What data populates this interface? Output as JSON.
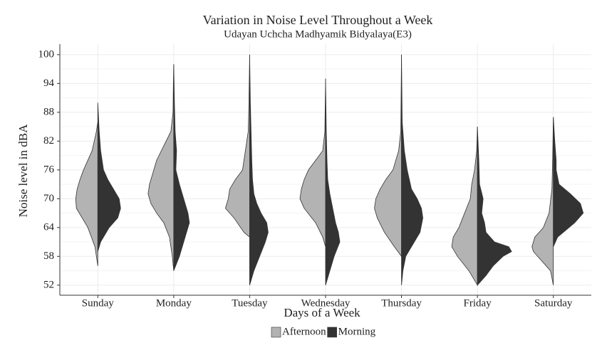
{
  "chart_data": {
    "type": "violin",
    "title": "Variation in Noise Level Throughout a Week",
    "subtitle": "Udayan Uchcha Madhyamik Bidyalaya(E3)",
    "x_label": "Days of a Week",
    "y_label": "Noise level in dBA",
    "categories": [
      "Sunday",
      "Monday",
      "Tuesday",
      "Wednesday",
      "Thursday",
      "Friday",
      "Saturday"
    ],
    "ylim": [
      49.9,
      102.2
    ],
    "yticks": [
      52,
      58,
      64,
      70,
      76,
      82,
      88,
      94,
      100
    ],
    "grid": true,
    "legend": "bottom",
    "series": [
      {
        "name": "Afternoon",
        "color": "#b3b3b3",
        "side": "left",
        "violins": [
          {
            "y": [
              56,
              60,
              64,
              66,
              68,
              70,
              72,
              74,
              76,
              78,
              80,
              84,
              86
            ],
            "width": [
              0,
              4,
              14,
              22,
              30,
              31,
              29,
              25,
              20,
              14,
              8,
              2,
              0
            ]
          },
          {
            "y": [
              55,
              58,
              62,
              65,
              67,
              69,
              71,
              73,
              75,
              78,
              81,
              84,
              88,
              94,
              98
            ],
            "width": [
              0,
              2,
              6,
              14,
              24,
              32,
              36,
              34,
              30,
              24,
              14,
              4,
              1,
              0.5,
              0
            ]
          },
          {
            "y": [
              62,
              63,
              66,
              68,
              70,
              72,
              74,
              76,
              78,
              80,
              84,
              90,
              100
            ],
            "width": [
              0,
              8,
              22,
              34,
              30,
              28,
              20,
              10,
              8,
              6,
              2,
              1,
              0
            ]
          },
          {
            "y": [
              60,
              62,
              65,
              68,
              70,
              72,
              74,
              76,
              78,
              80,
              84,
              95
            ],
            "width": [
              0,
              4,
              14,
              30,
              36,
              34,
              30,
              24,
              14,
              4,
              1,
              0
            ]
          },
          {
            "y": [
              58,
              60,
              63,
              66,
              68,
              70,
              72,
              74,
              76,
              80,
              84,
              100
            ],
            "width": [
              0,
              10,
              24,
              34,
              38,
              36,
              30,
              22,
              12,
              4,
              1,
              0
            ]
          },
          {
            "y": [
              52,
              55,
              58,
              60,
              62,
              64,
              67,
              70,
              73,
              76,
              80,
              85
            ],
            "width": [
              0,
              12,
              28,
              36,
              34,
              26,
              18,
              10,
              8,
              4,
              1,
              0
            ]
          },
          {
            "y": [
              52,
              55,
              57,
              59,
              60,
              62,
              64,
              67,
              72,
              78,
              87
            ],
            "width": [
              0,
              4,
              16,
              28,
              30,
              26,
              14,
              6,
              2,
              1,
              0
            ]
          }
        ]
      },
      {
        "name": "Morning",
        "color": "#333333",
        "side": "right",
        "violins": [
          {
            "y": [
              59,
              61,
              64,
              66,
              68,
              70,
              72,
              74,
              76,
              80,
              84,
              90
            ],
            "width": [
              0,
              4,
              16,
              28,
              32,
              30,
              22,
              14,
              8,
              4,
              2,
              0
            ]
          },
          {
            "y": [
              55,
              58,
              62,
              65,
              67,
              69,
              71,
              73,
              76,
              80,
              84,
              90,
              98
            ],
            "width": [
              0,
              8,
              16,
              22,
              20,
              16,
              12,
              8,
              3,
              4,
              2,
              1,
              0
            ]
          },
          {
            "y": [
              52,
              55,
              58,
              61,
              63,
              65,
              67,
              69,
              71,
              74,
              78,
              84,
              90,
              100
            ],
            "width": [
              0,
              6,
              14,
              22,
              26,
              24,
              16,
              10,
              6,
              4,
              3,
              2,
              1,
              0
            ]
          },
          {
            "y": [
              52,
              55,
              58,
              61,
              63,
              65,
              68,
              71,
              74,
              78,
              84,
              95
            ],
            "width": [
              0,
              6,
              12,
              20,
              18,
              14,
              10,
              6,
              3,
              2,
              1,
              0
            ]
          },
          {
            "y": [
              52,
              55,
              58,
              60,
              63,
              66,
              68,
              70,
              72,
              76,
              80,
              86,
              100
            ],
            "width": [
              0,
              2,
              6,
              14,
              26,
              30,
              28,
              22,
              14,
              8,
              4,
              1,
              0
            ]
          },
          {
            "y": [
              52,
              54,
              56,
              58,
              59,
              60,
              61,
              63,
              65,
              67,
              70,
              73,
              78,
              85
            ],
            "width": [
              0,
              12,
              22,
              36,
              48,
              44,
              24,
              12,
              10,
              6,
              8,
              3,
              2,
              0
            ]
          },
          {
            "y": [
              60,
              62,
              65,
              67,
              69,
              71,
              73,
              76,
              78,
              82,
              87
            ],
            "width": [
              0,
              6,
              30,
              42,
              38,
              24,
              8,
              4,
              4,
              2,
              0
            ]
          }
        ]
      }
    ]
  }
}
